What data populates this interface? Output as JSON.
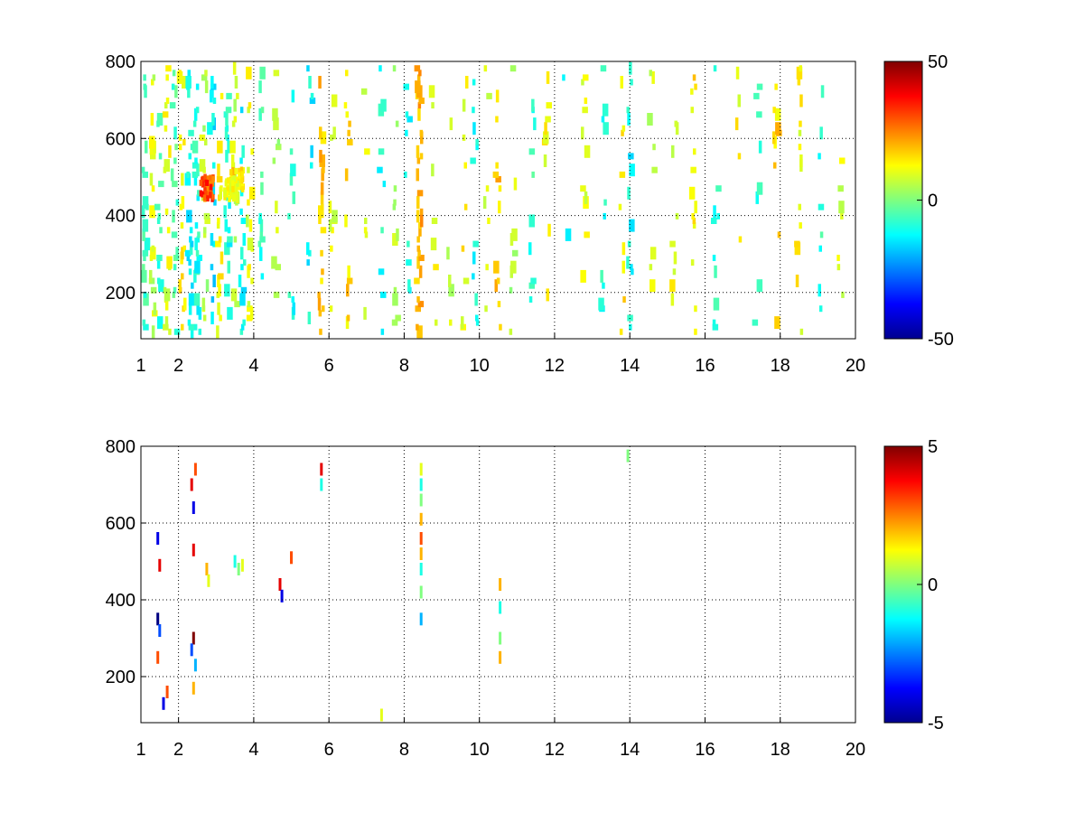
{
  "chart_data": [
    {
      "type": "heatmap",
      "title": "",
      "xlabel": "",
      "ylabel": "",
      "xlim": [
        1,
        20
      ],
      "ylim": [
        80,
        800
      ],
      "x_ticks": [
        "1",
        "2",
        "4",
        "6",
        "8",
        "10",
        "12",
        "14",
        "16",
        "18",
        "20"
      ],
      "y_ticks": [
        "200",
        "400",
        "600",
        "800"
      ],
      "grid": true,
      "colormap": "jet",
      "clim": [
        -50,
        50
      ],
      "colorbar": {
        "placement": "right",
        "ticks": [
          "50",
          "0",
          "-50"
        ]
      },
      "density": 0.34,
      "seed": 11,
      "columns": [
        {
          "x": 1.1,
          "v": -6,
          "d": 0.75
        },
        {
          "x": 1.3,
          "v": 8,
          "d": 0.75
        },
        {
          "x": 1.5,
          "v": -8,
          "d": 0.7
        },
        {
          "x": 1.7,
          "v": 10,
          "d": 0.7
        },
        {
          "x": 1.9,
          "v": -5,
          "d": 0.7
        },
        {
          "x": 2.1,
          "v": 14,
          "d": 0.8
        },
        {
          "x": 2.3,
          "v": -12,
          "d": 0.8
        },
        {
          "x": 2.5,
          "v": -10,
          "d": 0.8
        },
        {
          "x": 2.7,
          "v": 6,
          "d": 0.75
        },
        {
          "x": 2.9,
          "v": -14,
          "d": 0.75
        },
        {
          "x": 3.1,
          "v": 12,
          "d": 0.7
        },
        {
          "x": 3.3,
          "v": -10,
          "d": 0.7
        },
        {
          "x": 3.5,
          "v": 8,
          "d": 0.7
        },
        {
          "x": 3.7,
          "v": -12,
          "d": 0.65
        },
        {
          "x": 3.9,
          "v": 10,
          "d": 0.6
        },
        {
          "x": 4.2,
          "v": -8,
          "d": 0.5
        },
        {
          "x": 4.6,
          "v": 6,
          "d": 0.45
        },
        {
          "x": 5.0,
          "v": -10,
          "d": 0.4
        },
        {
          "x": 5.5,
          "v": -12,
          "d": 0.45
        },
        {
          "x": 5.8,
          "v": 18,
          "d": 0.85
        },
        {
          "x": 6.1,
          "v": 10,
          "d": 0.35
        },
        {
          "x": 6.5,
          "v": 16,
          "d": 0.4
        },
        {
          "x": 7.0,
          "v": 8,
          "d": 0.3
        },
        {
          "x": 7.4,
          "v": -10,
          "d": 0.3
        },
        {
          "x": 7.8,
          "v": 6,
          "d": 0.3
        },
        {
          "x": 8.1,
          "v": -12,
          "d": 0.35
        },
        {
          "x": 8.4,
          "v": 20,
          "d": 0.85
        },
        {
          "x": 8.8,
          "v": 10,
          "d": 0.35
        },
        {
          "x": 9.2,
          "v": 8,
          "d": 0.3
        },
        {
          "x": 9.6,
          "v": 12,
          "d": 0.35
        },
        {
          "x": 9.9,
          "v": -10,
          "d": 0.55
        },
        {
          "x": 10.2,
          "v": 8,
          "d": 0.3
        },
        {
          "x": 10.5,
          "v": 18,
          "d": 0.5
        },
        {
          "x": 10.9,
          "v": 6,
          "d": 0.3
        },
        {
          "x": 11.4,
          "v": -8,
          "d": 0.3
        },
        {
          "x": 11.8,
          "v": 12,
          "d": 0.4
        },
        {
          "x": 12.3,
          "v": -12,
          "d": 0.3
        },
        {
          "x": 12.8,
          "v": 10,
          "d": 0.3
        },
        {
          "x": 13.3,
          "v": -10,
          "d": 0.35
        },
        {
          "x": 13.8,
          "v": 14,
          "d": 0.35
        },
        {
          "x": 14.0,
          "v": -12,
          "d": 0.5
        },
        {
          "x": 14.6,
          "v": 8,
          "d": 0.25
        },
        {
          "x": 15.2,
          "v": 10,
          "d": 0.25
        },
        {
          "x": 15.7,
          "v": 14,
          "d": 0.55
        },
        {
          "x": 16.3,
          "v": -8,
          "d": 0.25
        },
        {
          "x": 16.9,
          "v": 12,
          "d": 0.25
        },
        {
          "x": 17.4,
          "v": -10,
          "d": 0.25
        },
        {
          "x": 17.9,
          "v": 16,
          "d": 0.55
        },
        {
          "x": 18.5,
          "v": 12,
          "d": 0.4
        },
        {
          "x": 19.1,
          "v": -8,
          "d": 0.3
        },
        {
          "x": 19.6,
          "v": 10,
          "d": 0.3
        }
      ],
      "blobs": [
        {
          "x": 2.75,
          "y": 470,
          "v": 40
        },
        {
          "x": 3.55,
          "y": 490,
          "v": 22
        },
        {
          "x": 3.4,
          "y": 470,
          "v": 15
        }
      ]
    },
    {
      "type": "heatmap",
      "title": "",
      "xlabel": "",
      "ylabel": "",
      "xlim": [
        1,
        20
      ],
      "ylim": [
        80,
        800
      ],
      "x_ticks": [
        "1",
        "2",
        "4",
        "6",
        "8",
        "10",
        "12",
        "14",
        "16",
        "18",
        "20"
      ],
      "y_ticks": [
        "200",
        "400",
        "600",
        "800"
      ],
      "grid": true,
      "colormap": "jet",
      "clim": [
        -5,
        5
      ],
      "colorbar": {
        "placement": "right",
        "ticks": [
          "5",
          "0",
          "-5"
        ]
      },
      "cells": [
        {
          "x": 1.45,
          "y": 560,
          "v": -4
        },
        {
          "x": 1.5,
          "y": 490,
          "v": 4
        },
        {
          "x": 1.45,
          "y": 350,
          "v": -5
        },
        {
          "x": 1.5,
          "y": 320,
          "v": -3
        },
        {
          "x": 1.45,
          "y": 250,
          "v": 3
        },
        {
          "x": 1.6,
          "y": 130,
          "v": -4
        },
        {
          "x": 1.65,
          "y": 95,
          "v": -5
        },
        {
          "x": 1.7,
          "y": 160,
          "v": 3
        },
        {
          "x": 2.35,
          "y": 700,
          "v": 4
        },
        {
          "x": 2.45,
          "y": 740,
          "v": 3
        },
        {
          "x": 2.4,
          "y": 640,
          "v": -4
        },
        {
          "x": 2.4,
          "y": 530,
          "v": 4
        },
        {
          "x": 2.4,
          "y": 300,
          "v": 5
        },
        {
          "x": 2.35,
          "y": 270,
          "v": -3
        },
        {
          "x": 2.4,
          "y": 170,
          "v": 2
        },
        {
          "x": 2.45,
          "y": 230,
          "v": -2
        },
        {
          "x": 2.75,
          "y": 480,
          "v": 2
        },
        {
          "x": 2.8,
          "y": 450,
          "v": 1
        },
        {
          "x": 3.5,
          "y": 500,
          "v": -1
        },
        {
          "x": 3.6,
          "y": 480,
          "v": 0
        },
        {
          "x": 3.7,
          "y": 490,
          "v": 1
        },
        {
          "x": 4.7,
          "y": 440,
          "v": 4
        },
        {
          "x": 4.75,
          "y": 410,
          "v": -4
        },
        {
          "x": 5.0,
          "y": 510,
          "v": 3
        },
        {
          "x": 5.8,
          "y": 740,
          "v": 4
        },
        {
          "x": 5.8,
          "y": 700,
          "v": -1
        },
        {
          "x": 7.4,
          "y": 100,
          "v": 1
        },
        {
          "x": 8.45,
          "y": 740,
          "v": 1
        },
        {
          "x": 8.45,
          "y": 700,
          "v": -1
        },
        {
          "x": 8.45,
          "y": 660,
          "v": 0
        },
        {
          "x": 8.45,
          "y": 610,
          "v": 2
        },
        {
          "x": 8.45,
          "y": 560,
          "v": 3
        },
        {
          "x": 8.45,
          "y": 520,
          "v": 2
        },
        {
          "x": 8.45,
          "y": 480,
          "v": -1
        },
        {
          "x": 8.45,
          "y": 420,
          "v": 0
        },
        {
          "x": 8.45,
          "y": 350,
          "v": -2
        },
        {
          "x": 10.55,
          "y": 440,
          "v": 2
        },
        {
          "x": 10.55,
          "y": 380,
          "v": -1
        },
        {
          "x": 10.55,
          "y": 300,
          "v": 0
        },
        {
          "x": 10.55,
          "y": 250,
          "v": 2
        },
        {
          "x": 13.95,
          "y": 775,
          "v": 0
        }
      ]
    }
  ]
}
